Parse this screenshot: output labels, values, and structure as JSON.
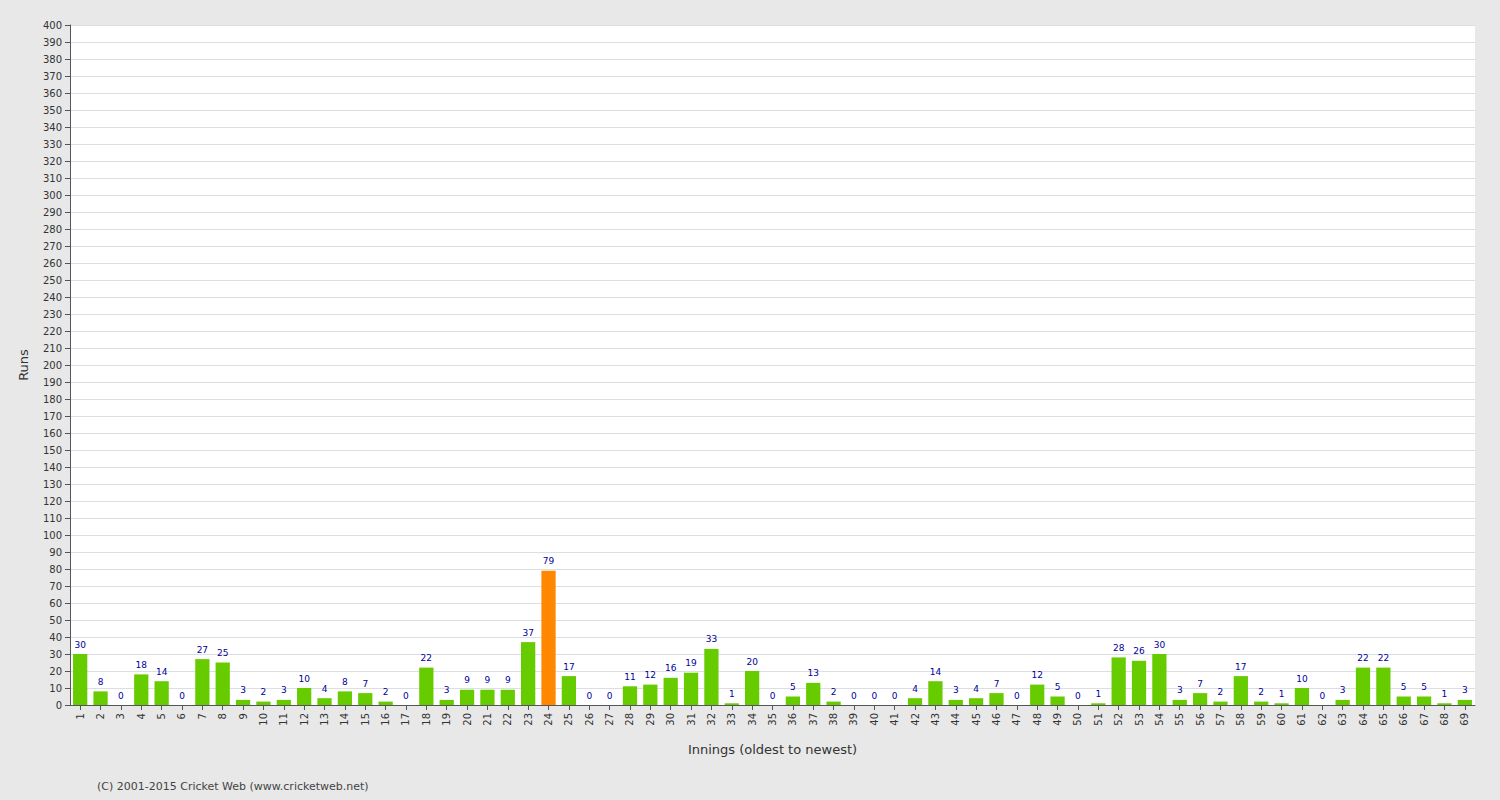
{
  "chart_data": {
    "type": "bar",
    "xlabel": "Innings (oldest to newest)",
    "ylabel": "Runs",
    "annotations": [
      "(C) 2001-2015 Cricket Web (www.cricketweb.net)"
    ],
    "categories": [
      "1",
      "2",
      "3",
      "4",
      "5",
      "6",
      "7",
      "8",
      "9",
      "10",
      "11",
      "12",
      "13",
      "14",
      "15",
      "16",
      "17",
      "18",
      "19",
      "20",
      "21",
      "22",
      "23",
      "24",
      "25",
      "26",
      "27",
      "28",
      "29",
      "30",
      "31",
      "32",
      "33",
      "34",
      "35",
      "36",
      "37",
      "38",
      "39",
      "40",
      "41",
      "42",
      "43",
      "44",
      "45",
      "46",
      "47",
      "48",
      "49",
      "50",
      "51",
      "52",
      "53",
      "54",
      "55",
      "56",
      "57",
      "58",
      "59",
      "60",
      "61",
      "62",
      "63",
      "64",
      "65",
      "66",
      "67",
      "68",
      "69"
    ],
    "values": [
      30,
      8,
      0,
      18,
      14,
      0,
      27,
      25,
      3,
      2,
      3,
      10,
      4,
      8,
      7,
      2,
      0,
      22,
      3,
      9,
      9,
      9,
      37,
      79,
      17,
      0,
      0,
      11,
      12,
      16,
      19,
      33,
      1,
      20,
      0,
      5,
      13,
      2,
      0,
      0,
      0,
      4,
      14,
      3,
      4,
      7,
      0,
      12,
      5,
      0,
      1,
      28,
      26,
      30,
      3,
      7,
      2,
      17,
      2,
      1,
      10,
      0,
      3,
      22,
      22,
      5,
      5,
      1,
      3
    ],
    "colors": [
      "#66cc00",
      "#66cc00",
      "#66cc00",
      "#66cc00",
      "#66cc00",
      "#66cc00",
      "#66cc00",
      "#66cc00",
      "#66cc00",
      "#66cc00",
      "#66cc00",
      "#66cc00",
      "#66cc00",
      "#66cc00",
      "#66cc00",
      "#66cc00",
      "#66cc00",
      "#66cc00",
      "#66cc00",
      "#66cc00",
      "#66cc00",
      "#66cc00",
      "#66cc00",
      "#ff8800",
      "#66cc00",
      "#66cc00",
      "#66cc00",
      "#66cc00",
      "#66cc00",
      "#66cc00",
      "#66cc00",
      "#66cc00",
      "#66cc00",
      "#66cc00",
      "#66cc00",
      "#66cc00",
      "#66cc00",
      "#66cc00",
      "#66cc00",
      "#66cc00",
      "#66cc00",
      "#66cc00",
      "#66cc00",
      "#66cc00",
      "#66cc00",
      "#66cc00",
      "#66cc00",
      "#66cc00",
      "#66cc00",
      "#66cc00",
      "#66cc00",
      "#66cc00",
      "#66cc00",
      "#66cc00",
      "#66cc00",
      "#66cc00",
      "#66cc00",
      "#66cc00",
      "#66cc00",
      "#66cc00",
      "#66cc00",
      "#66cc00",
      "#66cc00",
      "#66cc00",
      "#66cc00",
      "#66cc00",
      "#66cc00",
      "#66cc00",
      "#66cc00"
    ],
    "ylim": [
      0,
      400
    ],
    "yticks": [
      0,
      10,
      20,
      30,
      40,
      50,
      60,
      70,
      80,
      90,
      100,
      110,
      120,
      130,
      140,
      150,
      160,
      170,
      180,
      190,
      200,
      210,
      220,
      230,
      240,
      250,
      260,
      270,
      280,
      290,
      300,
      310,
      320,
      330,
      340,
      350,
      360,
      370,
      380,
      390,
      400
    ],
    "grid": true,
    "data_labels": true
  }
}
